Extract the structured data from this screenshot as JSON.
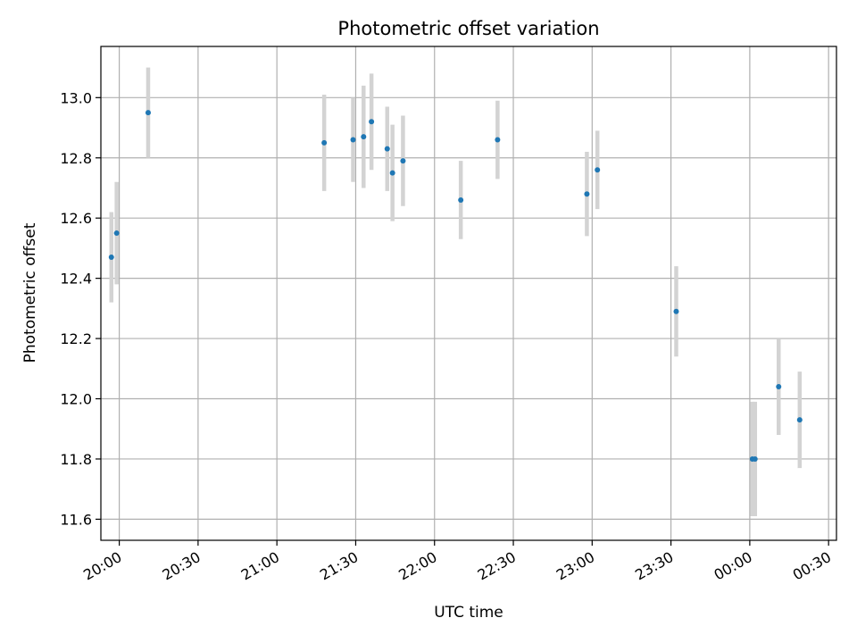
{
  "chart_data": {
    "type": "scatter",
    "title": "Photometric offset variation",
    "xlabel": "UTC time",
    "ylabel": "Photometric offset",
    "xlim": [
      "19:53",
      "00:33"
    ],
    "ylim": [
      11.53,
      13.17
    ],
    "grid": true,
    "x_ticks": [
      "20:00",
      "20:30",
      "21:00",
      "21:30",
      "22:00",
      "22:30",
      "23:00",
      "23:30",
      "00:00",
      "00:30"
    ],
    "y_ticks": [
      "11.6",
      "11.8",
      "12.0",
      "12.2",
      "12.4",
      "12.6",
      "12.8",
      "13.0"
    ],
    "series": [
      {
        "marker_color": "#1f77b4",
        "errorbar_color": "#d3d3d3",
        "points": [
          {
            "x": "19:57",
            "y": 12.47,
            "err": 0.15
          },
          {
            "x": "19:59",
            "y": 12.55,
            "err": 0.17
          },
          {
            "x": "20:11",
            "y": 12.95,
            "err": 0.15
          },
          {
            "x": "21:18",
            "y": 12.85,
            "err": 0.16
          },
          {
            "x": "21:29",
            "y": 12.86,
            "err": 0.14
          },
          {
            "x": "21:33",
            "y": 12.87,
            "err": 0.17
          },
          {
            "x": "21:36",
            "y": 12.92,
            "err": 0.16
          },
          {
            "x": "21:42",
            "y": 12.83,
            "err": 0.14
          },
          {
            "x": "21:44",
            "y": 12.75,
            "err": 0.16
          },
          {
            "x": "21:48",
            "y": 12.79,
            "err": 0.15
          },
          {
            "x": "22:10",
            "y": 12.66,
            "err": 0.13
          },
          {
            "x": "22:24",
            "y": 12.86,
            "err": 0.13
          },
          {
            "x": "22:58",
            "y": 12.68,
            "err": 0.14
          },
          {
            "x": "23:02",
            "y": 12.76,
            "err": 0.13
          },
          {
            "x": "23:32",
            "y": 12.29,
            "err": 0.15
          },
          {
            "x": "00:01",
            "y": 11.8,
            "err": 0.19
          },
          {
            "x": "00:02",
            "y": 11.8,
            "err": 0.19
          },
          {
            "x": "00:11",
            "y": 12.04,
            "err": 0.16
          },
          {
            "x": "00:19",
            "y": 11.93,
            "err": 0.16
          }
        ]
      }
    ]
  }
}
